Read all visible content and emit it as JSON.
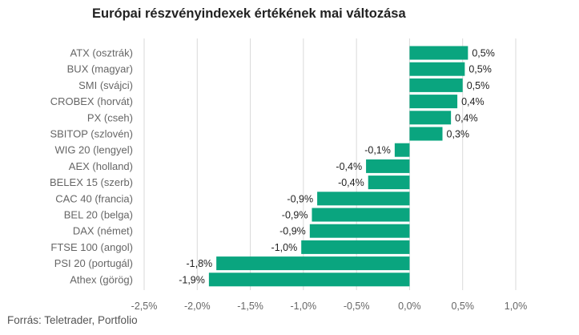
{
  "title": "Európai részvényindexek értékének mai változása",
  "source": "Forrás: Teletrader, Portfolio",
  "colors": {
    "bar": "#0aa57f",
    "grid": "#d9d9d9",
    "text": "#666666"
  },
  "chart_data": {
    "type": "bar",
    "orientation": "horizontal",
    "title": "Európai részvényindexek értékének mai változása",
    "xlabel": "",
    "ylabel": "",
    "xlim": [
      -2.5,
      1.0
    ],
    "grid": true,
    "legend": "none",
    "x_ticks": [
      -2.5,
      -2.0,
      -1.5,
      -1.0,
      -0.5,
      0.0,
      0.5,
      1.0
    ],
    "x_tick_labels": [
      "-2,5%",
      "-2,0%",
      "-1,5%",
      "-1,0%",
      "-0,5%",
      "0,0%",
      "0,5%",
      "1,0%"
    ],
    "categories": [
      "ATX (osztrák)",
      "BUX (magyar)",
      "SMI (svájci)",
      "CROBEX (horvát)",
      "PX (cseh)",
      "SBITOP (szlovén)",
      "WIG 20 (lengyel)",
      "AEX (holland)",
      "BELEX 15 (szerb)",
      "CAC 40 (francia)",
      "BEL 20 (belga)",
      "DAX (német)",
      "FTSE 100 (angol)",
      "PSI 20 (portugál)",
      "Athex (görög)"
    ],
    "values": [
      0.55,
      0.52,
      0.5,
      0.45,
      0.39,
      0.31,
      -0.14,
      -0.41,
      -0.39,
      -0.87,
      -0.92,
      -0.94,
      -1.02,
      -1.82,
      -1.89
    ],
    "data_labels": [
      "0,5%",
      "0,5%",
      "0,5%",
      "0,4%",
      "0,4%",
      "0,3%",
      "-0,1%",
      "-0,4%",
      "-0,4%",
      "-0,9%",
      "-0,9%",
      "-0,9%",
      "-1,0%",
      "-1,8%",
      "-1,9%"
    ]
  }
}
